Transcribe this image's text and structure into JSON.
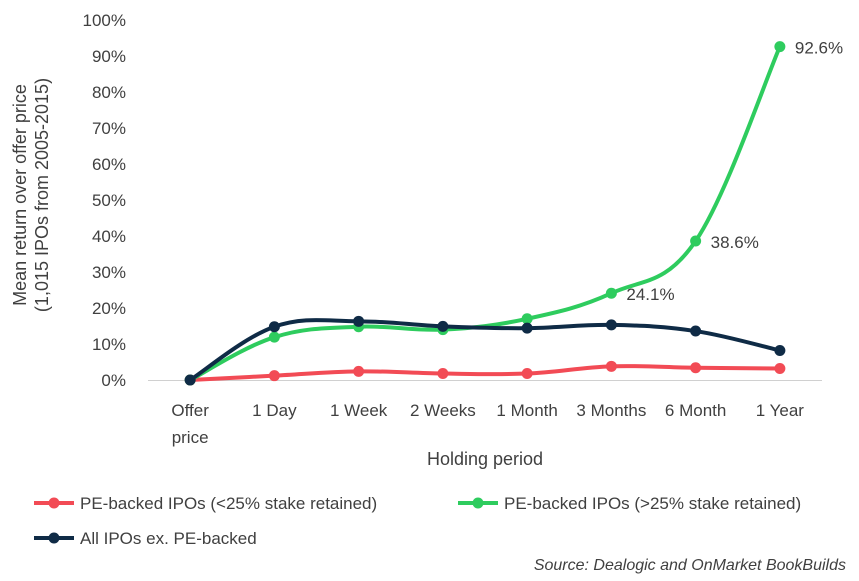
{
  "chart_data": {
    "type": "line",
    "categories": [
      "Offer price",
      "1 Day",
      "1 Week",
      "2 Weeks",
      "1 Month",
      "3 Months",
      "6 Month",
      "1 Year"
    ],
    "category_lines": [
      [
        "Offer",
        "price"
      ],
      [
        "1 Day"
      ],
      [
        "1 Week"
      ],
      [
        "2 Weeks"
      ],
      [
        "1 Month"
      ],
      [
        "3 Months"
      ],
      [
        "6 Month"
      ],
      [
        "1 Year"
      ]
    ],
    "xlabel": "Holding period",
    "ylabel_lines": [
      "Mean return over offer price",
      "(1,015 IPOs from 2005-2015)"
    ],
    "ylim": [
      0,
      100
    ],
    "y_ticks": [
      0,
      10,
      20,
      30,
      40,
      50,
      60,
      70,
      80,
      90,
      100
    ],
    "y_tick_labels": [
      "0%",
      "10%",
      "20%",
      "30%",
      "40%",
      "50%",
      "60%",
      "70%",
      "80%",
      "90%",
      "100%"
    ],
    "grid": false,
    "legend_position": "bottom",
    "series": [
      {
        "name": "PE-backed IPOs (<25% stake retained)",
        "color": "#F24B55",
        "values": [
          0,
          1.2,
          2.4,
          1.8,
          1.8,
          3.8,
          3.4,
          3.2
        ]
      },
      {
        "name": "PE-backed IPOs (>25% stake retained)",
        "color": "#2ECC5E",
        "values": [
          0,
          11.9,
          14.8,
          14.0,
          17.0,
          24.1,
          38.6,
          92.6
        ]
      },
      {
        "name": "All IPOs ex. PE-backed",
        "color": "#0F2B46",
        "values": [
          0,
          14.8,
          16.3,
          14.9,
          14.4,
          15.3,
          13.6,
          8.2
        ]
      }
    ],
    "data_labels": [
      {
        "series": 1,
        "index": 5,
        "text": "24.1%"
      },
      {
        "series": 1,
        "index": 6,
        "text": "38.6%"
      },
      {
        "series": 1,
        "index": 7,
        "text": "92.6%"
      }
    ],
    "source": "Source: Dealogic and OnMarket BookBuilds"
  }
}
